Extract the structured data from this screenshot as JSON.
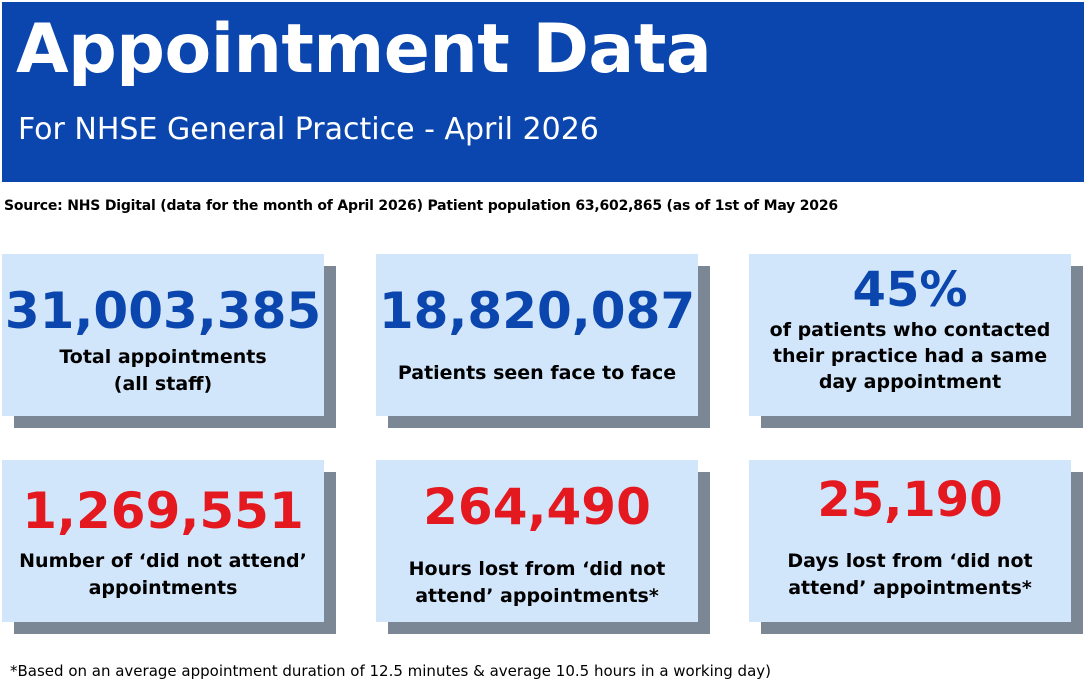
{
  "header": {
    "title": "Appointment Data",
    "subtitle": "For NHSE General Practice - April 2026"
  },
  "source_line": "Source: NHS Digital (data for the month of April 2026) Patient population 63,602,865 (as of 1st of  May 2026",
  "cards": [
    {
      "value": "31,003,385",
      "label_line1": "Total appointments",
      "label_line2": "(all staff)",
      "value_color": "#0a46ad"
    },
    {
      "value": "18,820,087",
      "label_line1": "Patients seen face to face",
      "value_color": "#0a46ad"
    },
    {
      "value": "45%",
      "label_line1": "of patients who contacted",
      "label_line2": "their practice had a same",
      "label_line3": "day appointment",
      "value_color": "#0a46ad"
    },
    {
      "value": "1,269,551",
      "label_line1": "Number of ‘did not attend’",
      "label_line2": "appointments",
      "value_color": "#e41920"
    },
    {
      "value": "264,490",
      "label_line1": "Hours lost from ‘did not",
      "label_line2": "attend’ appointments*",
      "value_color": "#e41920"
    },
    {
      "value": "25,190",
      "label_line1": "Days lost from ‘did not",
      "label_line2": "attend’ appointments*",
      "value_color": "#e41920"
    }
  ],
  "footnote": "*Based on an average appointment duration of 12.5 minutes & average 10.5 hours in a working day)",
  "colors": {
    "banner": "#0a46ad",
    "card_background": "#d2e6fb",
    "card_shadow": "#7b8794",
    "highlight_blue": "#0a46ad",
    "highlight_red": "#e41920"
  }
}
